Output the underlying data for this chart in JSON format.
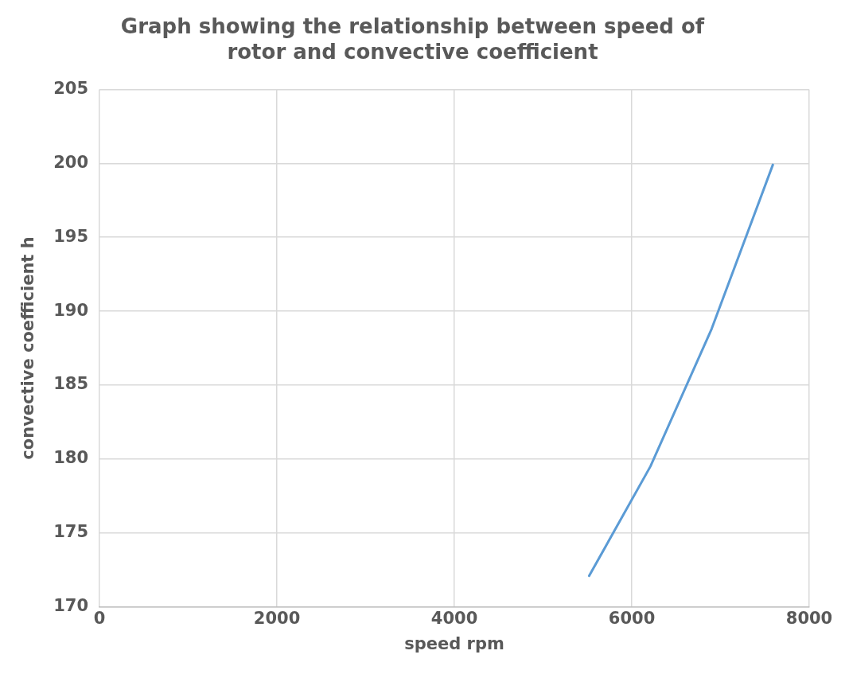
{
  "chart_data": {
    "type": "line",
    "title": "Graph showing the relationship between speed of rotor and convective coefficient",
    "xlabel": "speed rpm",
    "ylabel": "convective coefficient h",
    "x": [
      5520,
      6210,
      6900,
      7590
    ],
    "series": [
      {
        "color": "#5b9bd5",
        "values": [
          172.1,
          179.5,
          188.8,
          199.9
        ]
      }
    ],
    "xlim": [
      0,
      8000
    ],
    "xticks": [
      0,
      2000,
      4000,
      6000,
      8000
    ],
    "ylim": [
      170,
      205
    ],
    "yticks": [
      170,
      175,
      180,
      185,
      190,
      195,
      200,
      205
    ],
    "grid": true,
    "legend": false,
    "marker": "none",
    "line_style": "solid"
  }
}
